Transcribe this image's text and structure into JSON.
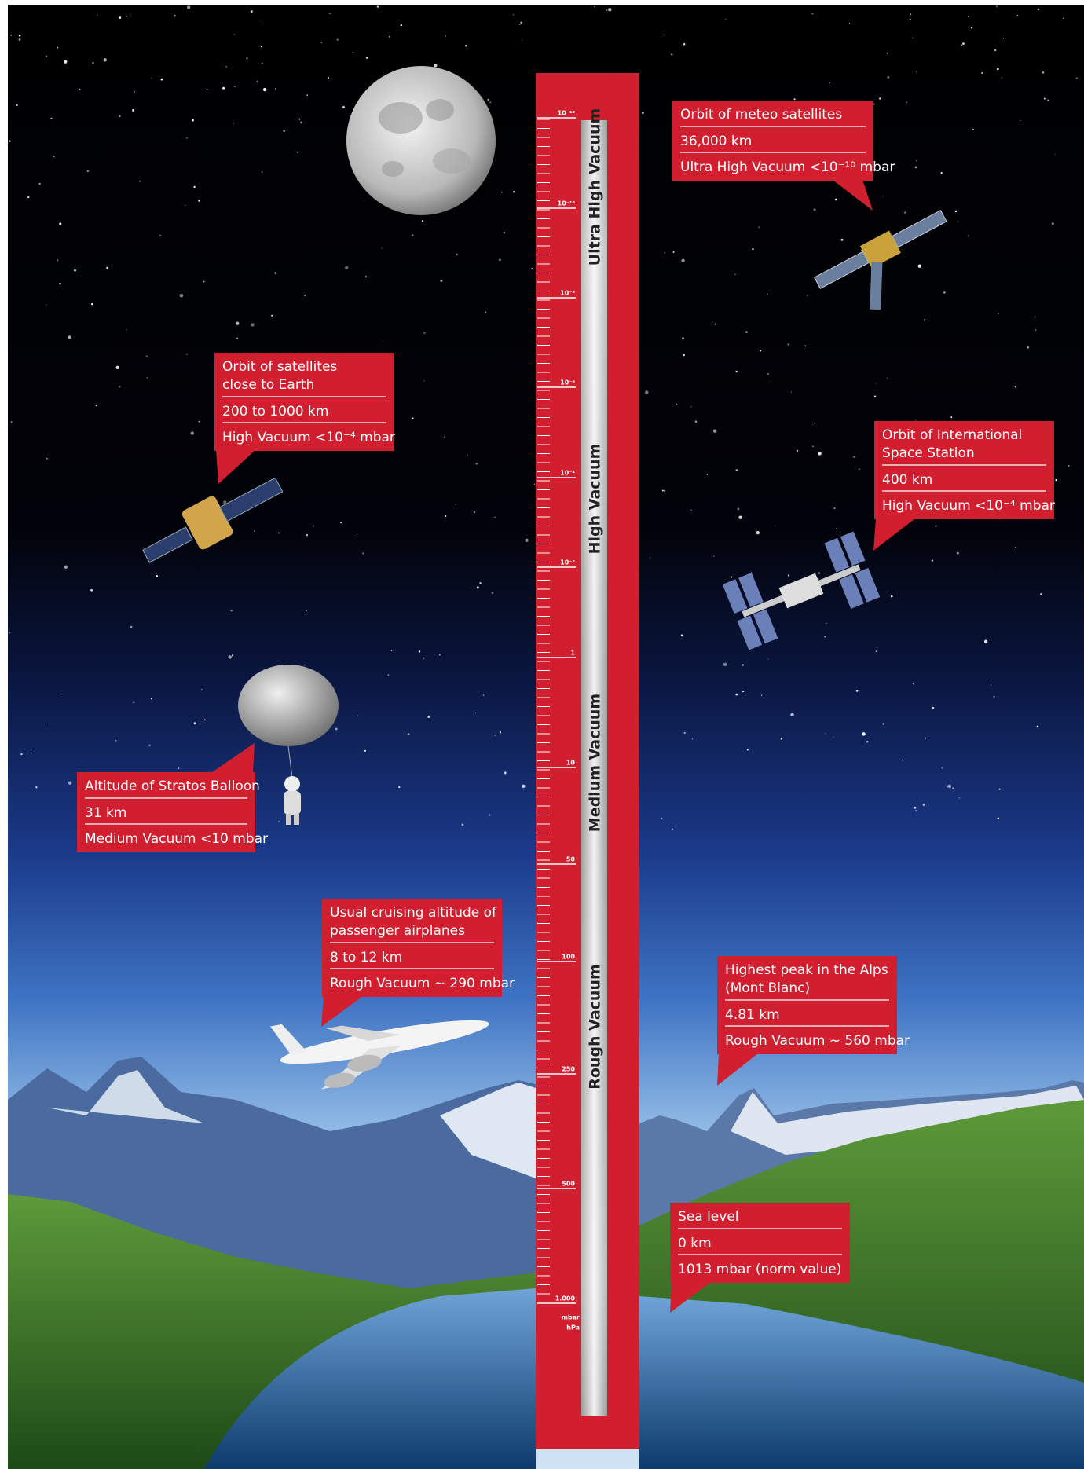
{
  "scale": {
    "ticks": [
      "10⁻¹²",
      "10⁻¹⁰",
      "10⁻⁸",
      "10⁻⁶",
      "10⁻⁴",
      "10⁻²",
      "1",
      "10",
      "50",
      "100",
      "250",
      "500",
      "1.000"
    ],
    "units": [
      "mbar",
      "hPa"
    ],
    "ranges": [
      "Ultra High Vacuum",
      "High Vacuum",
      "Medium Vacuum",
      "Rough Vacuum"
    ]
  },
  "callouts": [
    {
      "title": [
        "Orbit of meteo satellites"
      ],
      "altitude": "36,000 km",
      "pressure": "Ultra High Vacuum <10⁻¹⁰ mbar"
    },
    {
      "title": [
        "Orbit of satellites",
        "close to Earth"
      ],
      "altitude": "200 to 1000 km",
      "pressure": "High Vacuum <10⁻⁴ mbar"
    },
    {
      "title": [
        "Orbit of International",
        "Space Station"
      ],
      "altitude": "400 km",
      "pressure": "High Vacuum <10⁻⁴ mbar"
    },
    {
      "title": [
        "Altitude of Stratos Balloon"
      ],
      "altitude": "31 km",
      "pressure": "Medium Vacuum <10 mbar"
    },
    {
      "title": [
        "Usual cruising altitude of",
        "passenger airplanes"
      ],
      "altitude": "8 to 12 km",
      "pressure": "Rough Vacuum ~ 290 mbar"
    },
    {
      "title": [
        "Highest peak in the Alps",
        "(Mont Blanc)"
      ],
      "altitude": "4.81 km",
      "pressure": "Rough Vacuum ~ 560 mbar"
    },
    {
      "title": [
        "Sea level"
      ],
      "altitude": "0 km",
      "pressure": "1013 mbar (norm value)"
    }
  ]
}
